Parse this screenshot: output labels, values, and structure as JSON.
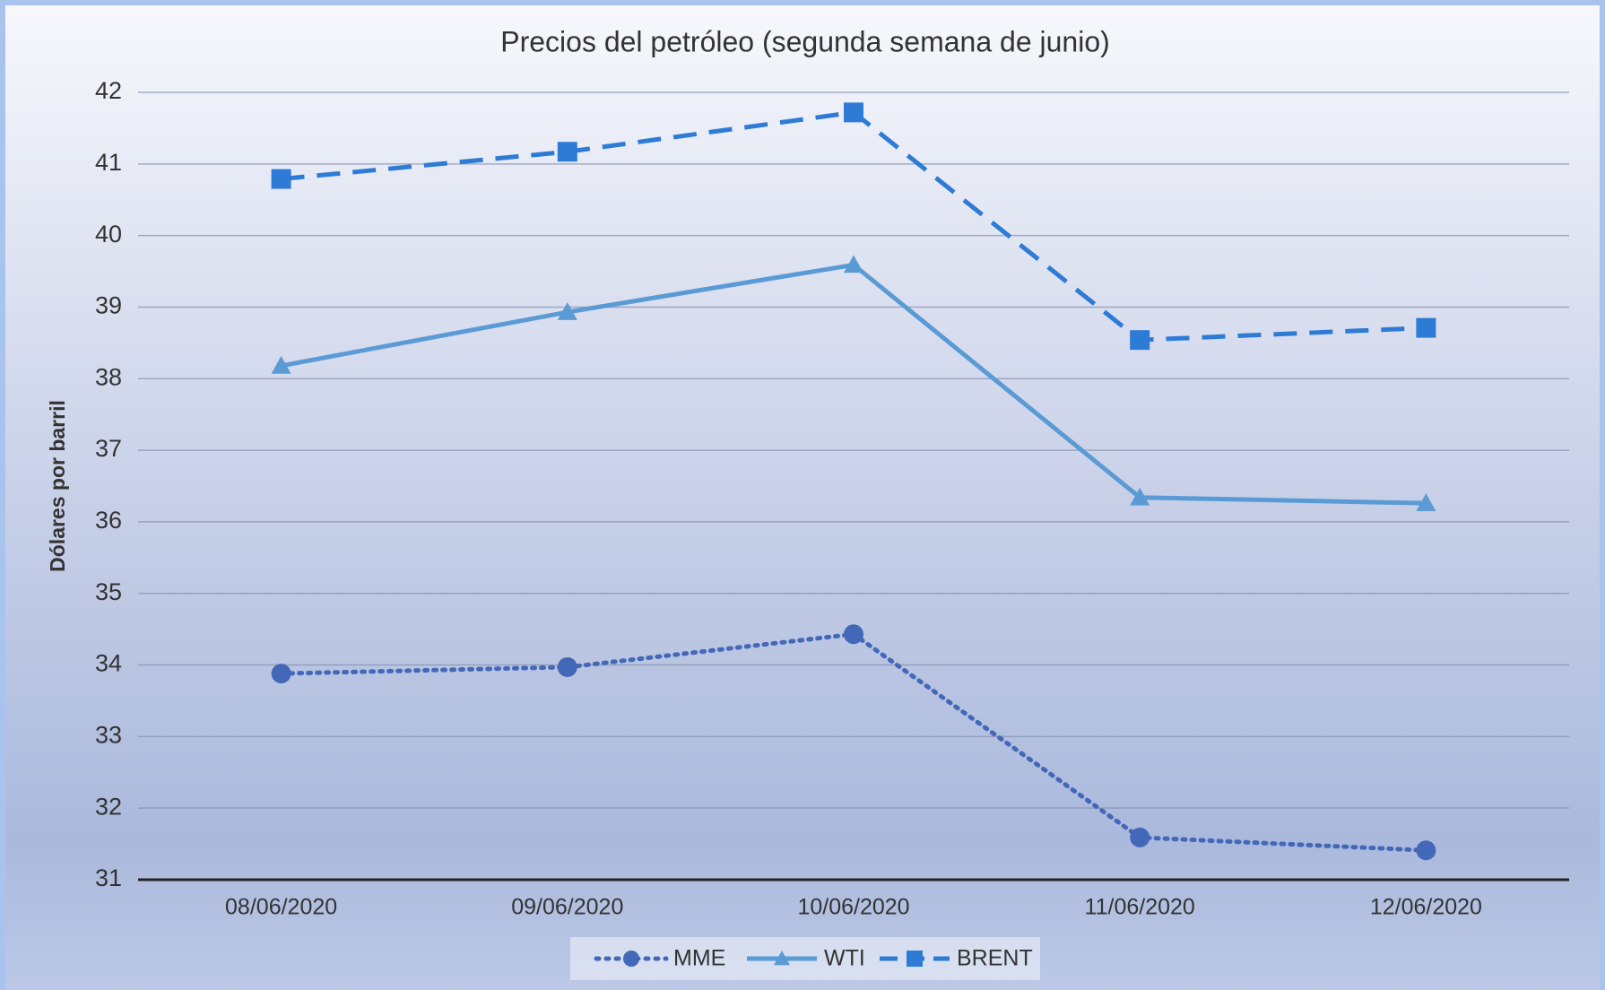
{
  "chart_data": {
    "type": "line",
    "title": "Precios del petróleo (segunda semana de junio)",
    "y_label": "Dólares por barril",
    "categories": [
      "08/06/2020",
      "09/06/2020",
      "10/06/2020",
      "11/06/2020",
      "12/06/2020"
    ],
    "series": [
      {
        "name": "MME",
        "color": "#4468b8",
        "dash": "dotted",
        "marker": "circle",
        "values": [
          33.88,
          33.97,
          34.43,
          31.59,
          31.41
        ]
      },
      {
        "name": "WTI",
        "color": "#5b9bd5",
        "dash": "solid",
        "marker": "triangle",
        "values": [
          38.18,
          38.93,
          39.59,
          36.34,
          36.26
        ]
      },
      {
        "name": "BRENT",
        "color": "#2e7bd6",
        "dash": "dashed",
        "marker": "square",
        "values": [
          40.79,
          41.17,
          41.72,
          38.54,
          38.71
        ]
      }
    ],
    "ylim": [
      31,
      42
    ],
    "yticks": [
      31,
      32,
      33,
      34,
      35,
      36,
      37,
      38,
      39,
      40,
      41,
      42
    ],
    "grid": true,
    "legend": "bottom"
  }
}
